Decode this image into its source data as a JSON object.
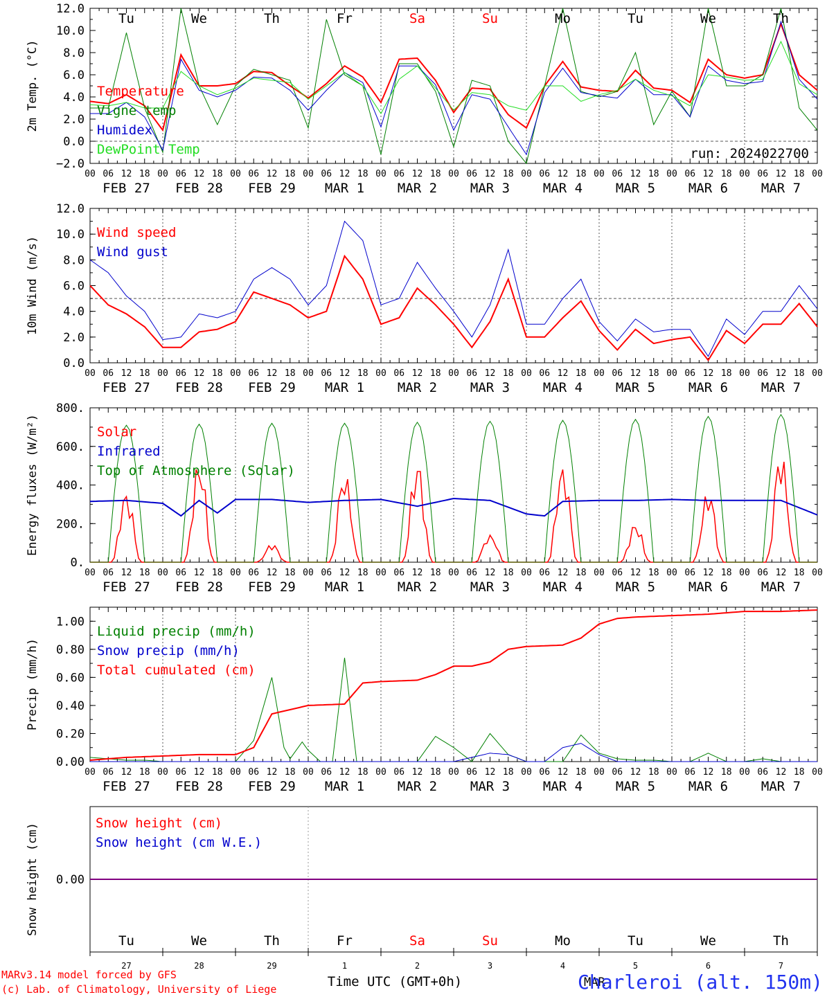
{
  "run_label": "run: 2024022700",
  "footer": {
    "credit_line1": "MARv3.14 model forced by GFS",
    "credit_line2": "(c) Lab. of Climatology, University of Liege",
    "xlabel": "Time UTC (GMT+0h)",
    "month_label": "MAR",
    "station": "Charleroi (alt. 150m)"
  },
  "colors": {
    "red": "#ff0000",
    "blue": "#0000cc",
    "green": "#008000",
    "lightgreen": "#22dd22",
    "weekend": "#ff0000",
    "grid": "#555555",
    "snowline": "#800080"
  },
  "days": {
    "weekday": [
      "Tu",
      "We",
      "Th",
      "Fr",
      "Sa",
      "Su",
      "Mo",
      "Tu",
      "We",
      "Th"
    ],
    "weekend_flags": [
      false,
      false,
      false,
      false,
      true,
      true,
      false,
      false,
      false,
      false
    ],
    "dates": [
      "FEB 27",
      "FEB 28",
      "FEB 29",
      "MAR  1",
      "MAR  2",
      "MAR  3",
      "MAR  4",
      "MAR  5",
      "MAR  6",
      "MAR  7"
    ],
    "day_numbers": [
      "27",
      "28",
      "29",
      "1",
      "2",
      "3",
      "4",
      "5",
      "6",
      "7"
    ],
    "hour_ticks": [
      "00",
      "06",
      "12",
      "18"
    ],
    "end_tick": "00"
  },
  "chart_data": [
    {
      "type": "line",
      "ylabel": "2m Temp. (°C)",
      "ylim": [
        -2,
        12
      ],
      "yticks": [
        "−2.0",
        "0.0",
        "2.0",
        "4.0",
        "6.0",
        "8.0",
        "10.0",
        "12.0"
      ],
      "yticks_values": [
        -2,
        0,
        2,
        4,
        6,
        8,
        10,
        12
      ],
      "dashed_y": 0,
      "x_unit": "hours since Feb 27 00 UTC",
      "series": [
        {
          "name": "Temperature",
          "color": "red",
          "x": [
            0,
            6,
            12,
            18,
            24,
            30,
            36,
            42,
            48,
            54,
            60,
            66,
            72,
            78,
            84,
            90,
            96,
            102,
            108,
            114,
            120,
            126,
            132,
            138,
            144,
            150,
            156,
            162,
            168,
            174,
            180,
            186,
            192,
            198,
            204,
            210,
            216,
            222,
            228,
            234,
            240
          ],
          "values": [
            3.6,
            3.4,
            4.2,
            3.2,
            1.0,
            7.8,
            5.0,
            5.0,
            5.2,
            6.3,
            6.2,
            5.0,
            3.9,
            5.2,
            6.8,
            5.8,
            3.5,
            7.4,
            7.5,
            5.5,
            2.6,
            4.8,
            4.7,
            2.4,
            1.2,
            5.0,
            7.2,
            4.9,
            4.6,
            4.5,
            6.4,
            4.8,
            4.6,
            3.5,
            7.4,
            6.0,
            5.7,
            6.0,
            10.6,
            6.0,
            4.6
          ]
        },
        {
          "name": "Vigne temp",
          "color": "green",
          "x": [
            0,
            6,
            12,
            18,
            24,
            30,
            36,
            42,
            48,
            54,
            60,
            66,
            72,
            78,
            84,
            90,
            96,
            102,
            108,
            114,
            120,
            126,
            132,
            138,
            144,
            150,
            156,
            162,
            168,
            174,
            180,
            186,
            192,
            198,
            204,
            210,
            216,
            222,
            228,
            234,
            240
          ],
          "values": [
            3.0,
            3.0,
            9.8,
            3.0,
            -1.0,
            12.0,
            5.0,
            1.5,
            5.0,
            6.5,
            6.0,
            5.5,
            1.2,
            11.0,
            6.0,
            5.0,
            -1.2,
            7.0,
            7.0,
            4.5,
            -0.5,
            5.5,
            5.0,
            0.0,
            -2.0,
            5.0,
            12.0,
            4.5,
            4.0,
            4.5,
            8.0,
            1.5,
            4.5,
            2.2,
            12.0,
            5.0,
            5.0,
            6.0,
            12.0,
            3.0,
            1.0
          ]
        },
        {
          "name": "Humidex",
          "color": "blue",
          "x": [
            0,
            6,
            12,
            18,
            24,
            30,
            36,
            42,
            48,
            54,
            60,
            66,
            72,
            78,
            84,
            90,
            96,
            102,
            108,
            114,
            120,
            126,
            132,
            138,
            144,
            150,
            156,
            162,
            168,
            174,
            180,
            186,
            192,
            198,
            204,
            210,
            216,
            222,
            228,
            234,
            240
          ],
          "values": [
            2.5,
            2.5,
            3.5,
            2.2,
            -0.8,
            7.4,
            4.6,
            4.0,
            4.6,
            5.8,
            5.7,
            4.6,
            2.8,
            4.6,
            6.2,
            5.3,
            1.3,
            6.8,
            6.8,
            5.1,
            1.0,
            4.2,
            3.8,
            1.3,
            -1.2,
            4.4,
            6.6,
            4.4,
            4.1,
            3.9,
            5.6,
            4.2,
            4.2,
            2.2,
            6.8,
            5.5,
            5.2,
            5.4,
            10.8,
            5.6,
            3.8
          ]
        },
        {
          "name": "DewPoint Temp",
          "color": "lightgreen",
          "x": [
            0,
            6,
            12,
            18,
            24,
            30,
            36,
            42,
            48,
            54,
            60,
            66,
            72,
            78,
            84,
            90,
            96,
            102,
            108,
            114,
            120,
            126,
            132,
            138,
            144,
            150,
            156,
            162,
            168,
            174,
            180,
            186,
            192,
            198,
            204,
            210,
            216,
            222,
            228,
            234,
            240
          ],
          "values": [
            3.3,
            3.2,
            3.5,
            3.0,
            3.0,
            6.3,
            5.0,
            4.2,
            4.8,
            5.7,
            5.5,
            5.3,
            3.8,
            5.0,
            6.2,
            5.0,
            2.5,
            5.6,
            6.8,
            4.8,
            2.8,
            4.4,
            4.2,
            3.2,
            2.8,
            5.0,
            5.0,
            3.6,
            4.2,
            4.6,
            5.6,
            4.6,
            4.1,
            3.2,
            6.0,
            5.8,
            5.5,
            5.6,
            9.0,
            5.2,
            4.2
          ]
        }
      ]
    },
    {
      "type": "line",
      "ylabel": "10m Wind (m/s)",
      "ylim": [
        0,
        12
      ],
      "yticks": [
        "0.0",
        "2.0",
        "4.0",
        "6.0",
        "8.0",
        "10.0",
        "12.0"
      ],
      "yticks_values": [
        0,
        2,
        4,
        6,
        8,
        10,
        12
      ],
      "dashed_y": 5,
      "series": [
        {
          "name": "Wind speed",
          "color": "red",
          "x": [
            0,
            6,
            12,
            18,
            24,
            30,
            36,
            42,
            48,
            54,
            60,
            66,
            72,
            78,
            84,
            90,
            96,
            102,
            108,
            114,
            120,
            126,
            132,
            138,
            144,
            150,
            156,
            162,
            168,
            174,
            180,
            186,
            192,
            198,
            204,
            210,
            216,
            222,
            228,
            234,
            240
          ],
          "values": [
            6.0,
            4.5,
            3.8,
            2.8,
            1.2,
            1.2,
            2.4,
            2.6,
            3.2,
            5.5,
            5.0,
            4.5,
            3.5,
            4.0,
            8.3,
            6.5,
            3.0,
            3.5,
            5.8,
            4.5,
            3.0,
            1.2,
            3.2,
            6.5,
            2.0,
            2.0,
            3.5,
            4.8,
            2.5,
            1.0,
            2.6,
            1.5,
            1.8,
            2.0,
            0.2,
            2.5,
            1.5,
            3.0,
            3.0,
            4.6,
            2.8
          ]
        },
        {
          "name": "Wind gust",
          "color": "blue",
          "x": [
            0,
            6,
            12,
            18,
            24,
            30,
            36,
            42,
            48,
            54,
            60,
            66,
            72,
            78,
            84,
            90,
            96,
            102,
            108,
            114,
            120,
            126,
            132,
            138,
            144,
            150,
            156,
            162,
            168,
            174,
            180,
            186,
            192,
            198,
            204,
            210,
            216,
            222,
            228,
            234,
            240
          ],
          "values": [
            8.0,
            7.0,
            5.2,
            4.0,
            1.8,
            2.0,
            3.8,
            3.5,
            4.0,
            6.5,
            7.4,
            6.5,
            4.5,
            6.0,
            11.0,
            9.5,
            4.5,
            5.0,
            7.8,
            5.8,
            4.0,
            2.0,
            4.5,
            8.8,
            3.0,
            3.0,
            5.0,
            6.5,
            3.2,
            1.7,
            3.4,
            2.4,
            2.6,
            2.6,
            0.5,
            3.4,
            2.2,
            4.0,
            4.0,
            6.0,
            4.2
          ]
        }
      ]
    },
    {
      "type": "line",
      "ylabel": "Energy fluxes (W/m²)",
      "ylim": [
        0,
        800
      ],
      "yticks": [
        "0.",
        "200.",
        "400.",
        "600.",
        "800."
      ],
      "yticks_values": [
        0,
        200,
        400,
        600,
        800
      ],
      "series": [
        {
          "name": "Solar",
          "color": "red",
          "peaks_per_day": [
            340,
            480,
            85,
            430,
            470,
            140,
            480,
            180,
            340,
            520
          ]
        },
        {
          "name": "Infrared",
          "color": "blue",
          "x": [
            0,
            12,
            24,
            30,
            36,
            42,
            48,
            60,
            72,
            84,
            96,
            108,
            120,
            132,
            144,
            150,
            156,
            168,
            180,
            192,
            204,
            216,
            228,
            240
          ],
          "values": [
            315,
            320,
            305,
            240,
            320,
            255,
            325,
            325,
            310,
            320,
            325,
            290,
            330,
            320,
            250,
            240,
            315,
            320,
            320,
            325,
            320,
            320,
            320,
            245
          ]
        },
        {
          "name": "Top of Atmosphere (Solar)",
          "color": "green",
          "peaks_per_day": [
            710,
            715,
            720,
            720,
            725,
            730,
            735,
            740,
            755,
            765
          ]
        }
      ]
    },
    {
      "type": "line",
      "ylabel": "Precip (mm/h)",
      "ylim": [
        0,
        1.1
      ],
      "yticks": [
        "0.00",
        "0.20",
        "0.40",
        "0.60",
        "0.80",
        "1.00"
      ],
      "yticks_values": [
        0,
        0.2,
        0.4,
        0.6,
        0.8,
        1.0
      ],
      "series": [
        {
          "name": "Liquid precip (mm/h)",
          "color": "green",
          "x": [
            0,
            6,
            12,
            18,
            24,
            30,
            36,
            42,
            48,
            54,
            60,
            64,
            66,
            70,
            72,
            76,
            80,
            84,
            88,
            96,
            108,
            114,
            120,
            126,
            132,
            138,
            144,
            150,
            156,
            162,
            168,
            174,
            180,
            186,
            192,
            198,
            204,
            210,
            216,
            222,
            228,
            234,
            240
          ],
          "values": [
            0.03,
            0.02,
            0.01,
            0.01,
            0.0,
            0.0,
            0.0,
            0.0,
            0.0,
            0.15,
            0.6,
            0.1,
            0.02,
            0.14,
            0.08,
            0.0,
            0.0,
            0.74,
            0.0,
            0.0,
            0.0,
            0.18,
            0.1,
            0.0,
            0.2,
            0.05,
            0.0,
            0.0,
            0.0,
            0.19,
            0.06,
            0.02,
            0.01,
            0.01,
            0.0,
            0.0,
            0.06,
            0.0,
            0.0,
            0.02,
            0.0,
            0.0,
            0.0
          ]
        },
        {
          "name": "Snow precip (mm/h)",
          "color": "blue",
          "x": [
            0,
            120,
            132,
            138,
            144,
            150,
            156,
            162,
            168,
            174,
            240
          ],
          "values": [
            0,
            0,
            0.06,
            0.05,
            0,
            0,
            0.1,
            0.13,
            0.05,
            0,
            0
          ]
        },
        {
          "name": "Total cumulated (cm)",
          "color": "red",
          "x": [
            0,
            12,
            24,
            36,
            48,
            54,
            60,
            66,
            72,
            84,
            90,
            96,
            108,
            114,
            120,
            126,
            132,
            138,
            144,
            156,
            162,
            168,
            174,
            180,
            192,
            204,
            216,
            228,
            240
          ],
          "values": [
            0.01,
            0.03,
            0.04,
            0.05,
            0.05,
            0.1,
            0.34,
            0.37,
            0.4,
            0.41,
            0.56,
            0.57,
            0.58,
            0.62,
            0.68,
            0.68,
            0.71,
            0.8,
            0.82,
            0.83,
            0.88,
            0.98,
            1.02,
            1.03,
            1.04,
            1.05,
            1.07,
            1.07,
            1.08
          ]
        }
      ]
    },
    {
      "type": "line",
      "ylabel": "Snow height (cm)",
      "yticks": [
        "0.00"
      ],
      "yticks_values": [
        0
      ],
      "series": [
        {
          "name": "Snow height (cm)",
          "color": "red",
          "x": [
            0,
            240
          ],
          "values": [
            0,
            0
          ]
        },
        {
          "name": "Snow height (cm W.E.)",
          "color": "blue",
          "x": [
            0,
            240
          ],
          "values": [
            0,
            0
          ]
        }
      ]
    }
  ]
}
